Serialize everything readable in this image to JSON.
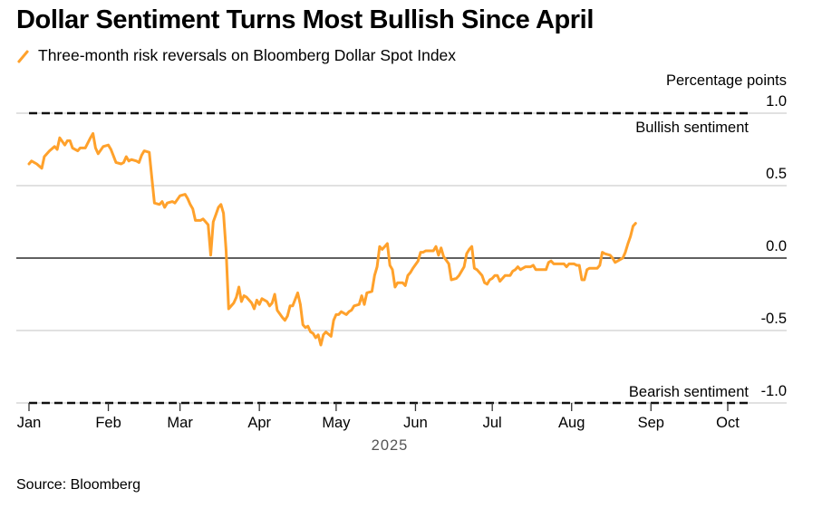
{
  "title": "Dollar Sentiment Turns Most Bullish Since April",
  "legend": {
    "label": "Three-month risk reversals on Bloomberg Dollar Spot Index",
    "color": "#ffa12b"
  },
  "source": "Source: Bloomberg",
  "chart_data": {
    "type": "line",
    "title": "Dollar Sentiment Turns Most Bullish Since April",
    "ylabel": "Percentage points",
    "xlabel": "2025",
    "ylim": [
      -1.0,
      1.0
    ],
    "yticks": [
      1.0,
      0.5,
      0.0,
      -0.5,
      -1.0
    ],
    "ytick_labels": [
      "1.0",
      "0.5",
      "0.0",
      "-0.5",
      "-1.0"
    ],
    "xticks": [
      {
        "label": "Jan",
        "day": 1
      },
      {
        "label": "Feb",
        "day": 32
      },
      {
        "label": "Mar",
        "day": 60
      },
      {
        "label": "Apr",
        "day": 91
      },
      {
        "label": "May",
        "day": 121
      },
      {
        "label": "Jun",
        "day": 152
      },
      {
        "label": "Jul",
        "day": 182
      },
      {
        "label": "Aug",
        "day": 213
      },
      {
        "label": "Sep",
        "day": 244
      },
      {
        "label": "Oct",
        "day": 274
      }
    ],
    "grid": true,
    "annotations": [
      {
        "text": "Bullish sentiment",
        "y": 1.0,
        "style": "dashed"
      },
      {
        "text": "Bearish sentiment",
        "y": -1.0,
        "style": "dashed"
      }
    ],
    "series": [
      {
        "name": "Three-month risk reversals on Bloomberg Dollar Spot Index",
        "color": "#ffa12b",
        "points": [
          [
            1,
            0.65
          ],
          [
            2,
            0.67
          ],
          [
            4,
            0.65
          ],
          [
            6,
            0.62
          ],
          [
            7,
            0.7
          ],
          [
            9,
            0.74
          ],
          [
            11,
            0.77
          ],
          [
            12,
            0.75
          ],
          [
            13,
            0.83
          ],
          [
            15,
            0.78
          ],
          [
            16,
            0.81
          ],
          [
            17,
            0.81
          ],
          [
            18,
            0.76
          ],
          [
            20,
            0.74
          ],
          [
            21,
            0.76
          ],
          [
            23,
            0.76
          ],
          [
            25,
            0.83
          ],
          [
            26,
            0.86
          ],
          [
            27,
            0.76
          ],
          [
            28,
            0.72
          ],
          [
            30,
            0.77
          ],
          [
            32,
            0.78
          ],
          [
            33,
            0.75
          ],
          [
            35,
            0.66
          ],
          [
            37,
            0.65
          ],
          [
            38,
            0.66
          ],
          [
            39,
            0.7
          ],
          [
            40,
            0.67
          ],
          [
            41,
            0.68
          ],
          [
            43,
            0.67
          ],
          [
            44,
            0.66
          ],
          [
            45,
            0.71
          ],
          [
            46,
            0.74
          ],
          [
            48,
            0.73
          ],
          [
            49,
            0.55
          ],
          [
            50,
            0.38
          ],
          [
            52,
            0.37
          ],
          [
            53,
            0.39
          ],
          [
            54,
            0.35
          ],
          [
            55,
            0.38
          ],
          [
            57,
            0.39
          ],
          [
            58,
            0.38
          ],
          [
            60,
            0.43
          ],
          [
            62,
            0.44
          ],
          [
            63,
            0.41
          ],
          [
            64,
            0.37
          ],
          [
            65,
            0.34
          ],
          [
            66,
            0.26
          ],
          [
            68,
            0.26
          ],
          [
            69,
            0.27
          ],
          [
            70,
            0.25
          ],
          [
            71,
            0.23
          ],
          [
            72,
            0.02
          ],
          [
            73,
            0.25
          ],
          [
            74,
            0.3
          ],
          [
            75,
            0.35
          ],
          [
            76,
            0.37
          ],
          [
            77,
            0.31
          ],
          [
            78,
            0.05
          ],
          [
            79,
            -0.35
          ],
          [
            81,
            -0.31
          ],
          [
            82,
            -0.27
          ],
          [
            83,
            -0.2
          ],
          [
            84,
            -0.3
          ],
          [
            85,
            -0.26
          ],
          [
            86,
            -0.27
          ],
          [
            88,
            -0.31
          ],
          [
            89,
            -0.35
          ],
          [
            90,
            -0.29
          ],
          [
            91,
            -0.32
          ],
          [
            92,
            -0.28
          ],
          [
            93,
            -0.29
          ],
          [
            94,
            -0.3
          ],
          [
            95,
            -0.33
          ],
          [
            96,
            -0.31
          ],
          [
            97,
            -0.25
          ],
          [
            98,
            -0.36
          ],
          [
            100,
            -0.41
          ],
          [
            101,
            -0.43
          ],
          [
            102,
            -0.4
          ],
          [
            103,
            -0.33
          ],
          [
            104,
            -0.33
          ],
          [
            106,
            -0.24
          ],
          [
            107,
            -0.32
          ],
          [
            108,
            -0.46
          ],
          [
            109,
            -0.48
          ],
          [
            110,
            -0.47
          ],
          [
            111,
            -0.51
          ],
          [
            112,
            -0.52
          ],
          [
            113,
            -0.55
          ],
          [
            114,
            -0.53
          ],
          [
            115,
            -0.6
          ],
          [
            116,
            -0.53
          ],
          [
            117,
            -0.51
          ],
          [
            119,
            -0.54
          ],
          [
            120,
            -0.43
          ],
          [
            121,
            -0.39
          ],
          [
            122,
            -0.39
          ],
          [
            123,
            -0.37
          ],
          [
            125,
            -0.39
          ],
          [
            126,
            -0.37
          ],
          [
            127,
            -0.36
          ],
          [
            128,
            -0.33
          ],
          [
            130,
            -0.32
          ],
          [
            131,
            -0.26
          ],
          [
            132,
            -0.32
          ],
          [
            133,
            -0.24
          ],
          [
            135,
            -0.23
          ],
          [
            136,
            -0.12
          ],
          [
            137,
            -0.06
          ],
          [
            138,
            0.08
          ],
          [
            139,
            0.06
          ],
          [
            140,
            0.08
          ],
          [
            141,
            0.1
          ],
          [
            142,
            -0.05
          ],
          [
            143,
            -0.08
          ],
          [
            144,
            -0.2
          ],
          [
            145,
            -0.17
          ],
          [
            147,
            -0.17
          ],
          [
            148,
            -0.19
          ],
          [
            149,
            -0.12
          ],
          [
            150,
            -0.1
          ],
          [
            151,
            -0.07
          ],
          [
            153,
            -0.02
          ],
          [
            154,
            0.04
          ],
          [
            155,
            0.04
          ],
          [
            156,
            0.05
          ],
          [
            158,
            0.05
          ],
          [
            159,
            0.05
          ],
          [
            160,
            0.08
          ],
          [
            161,
            0.02
          ],
          [
            162,
            0.07
          ],
          [
            163,
            0.01
          ],
          [
            165,
            -0.04
          ],
          [
            166,
            -0.15
          ],
          [
            168,
            -0.14
          ],
          [
            169,
            -0.12
          ],
          [
            171,
            -0.06
          ],
          [
            172,
            0.03
          ],
          [
            173,
            0.06
          ],
          [
            174,
            0.08
          ],
          [
            175,
            -0.07
          ],
          [
            176,
            -0.08
          ],
          [
            177,
            -0.1
          ],
          [
            178,
            -0.12
          ],
          [
            179,
            -0.17
          ],
          [
            180,
            -0.18
          ],
          [
            181,
            -0.15
          ],
          [
            182,
            -0.14
          ],
          [
            183,
            -0.12
          ],
          [
            184,
            -0.12
          ],
          [
            185,
            -0.16
          ],
          [
            186,
            -0.14
          ],
          [
            187,
            -0.12
          ],
          [
            188,
            -0.12
          ],
          [
            189,
            -0.12
          ],
          [
            190,
            -0.09
          ],
          [
            191,
            -0.08
          ],
          [
            192,
            -0.06
          ],
          [
            193,
            -0.08
          ],
          [
            195,
            -0.06
          ],
          [
            197,
            -0.06
          ],
          [
            198,
            -0.05
          ],
          [
            199,
            -0.08
          ],
          [
            201,
            -0.08
          ],
          [
            203,
            -0.08
          ],
          [
            204,
            -0.03
          ],
          [
            205,
            -0.02
          ],
          [
            206,
            -0.04
          ],
          [
            207,
            -0.04
          ],
          [
            209,
            -0.04
          ],
          [
            210,
            -0.04
          ],
          [
            211,
            -0.06
          ],
          [
            212,
            -0.04
          ],
          [
            213,
            -0.04
          ],
          [
            214,
            -0.04
          ],
          [
            215,
            -0.05
          ],
          [
            216,
            -0.05
          ],
          [
            217,
            -0.15
          ],
          [
            218,
            -0.15
          ],
          [
            219,
            -0.08
          ],
          [
            220,
            -0.07
          ],
          [
            221,
            -0.07
          ],
          [
            222,
            -0.07
          ],
          [
            223,
            -0.07
          ],
          [
            224,
            -0.05
          ],
          [
            225,
            0.04
          ],
          [
            226,
            0.03
          ],
          [
            228,
            0.02
          ],
          [
            229,
            0.0
          ],
          [
            230,
            -0.03
          ],
          [
            231,
            -0.02
          ],
          [
            232,
            -0.01
          ],
          [
            233,
            0.0
          ],
          [
            234,
            0.04
          ],
          [
            235,
            0.1
          ],
          [
            236,
            0.15
          ],
          [
            237,
            0.22
          ],
          [
            238,
            0.24
          ]
        ]
      }
    ]
  }
}
